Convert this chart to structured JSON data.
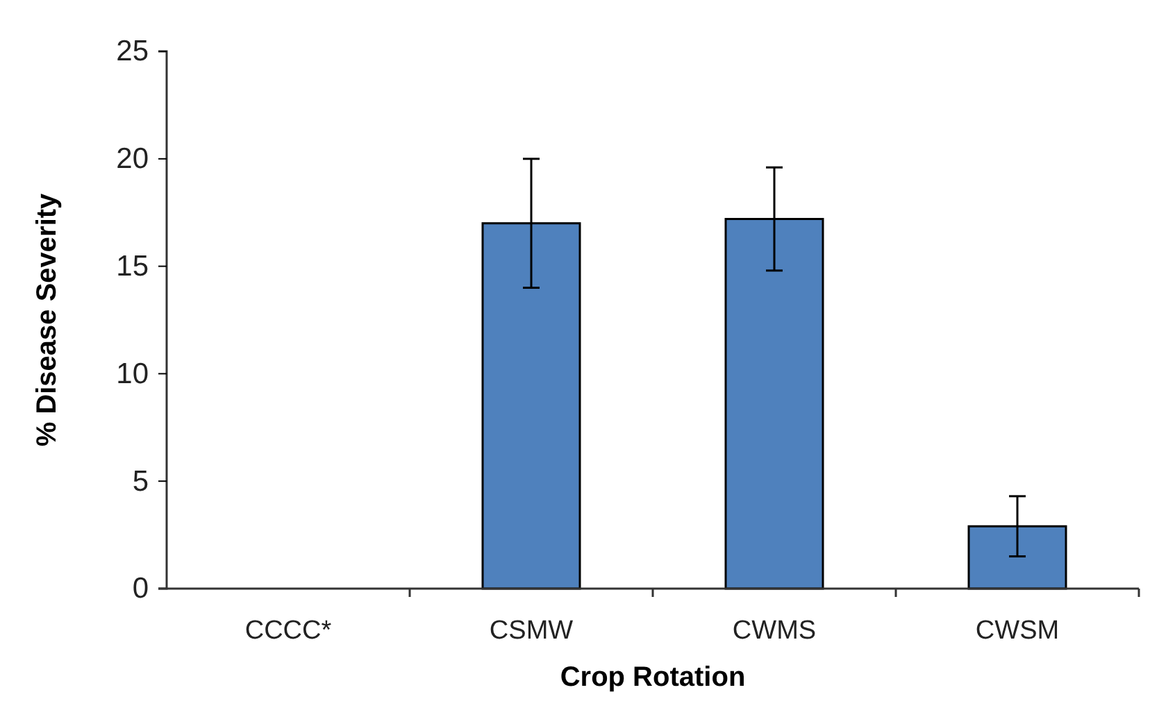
{
  "chart_data": {
    "type": "bar",
    "xlabel": "Crop Rotation",
    "ylabel": "% Disease Severity",
    "categories": [
      "CCCC*",
      "CSMW",
      "CWMS",
      "CWSM"
    ],
    "values": [
      0,
      17.0,
      17.2,
      2.9
    ],
    "errors": [
      null,
      3.0,
      2.4,
      1.4
    ],
    "color": "#4f81bd",
    "ylim": [
      0,
      25
    ],
    "yticks": [
      0,
      5,
      10,
      15,
      20,
      25
    ],
    "grid": false
  }
}
